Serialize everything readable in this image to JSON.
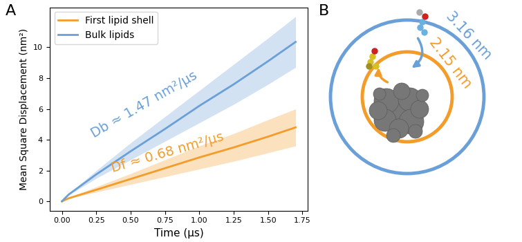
{
  "chart_data": {
    "type": "line",
    "panel_label": "A",
    "x_label": "Time (μs)",
    "y_label": "Mean Square Displacement (nm²)",
    "x": [
      0,
      0.05,
      0.25,
      0.5,
      0.75,
      1.0,
      1.25,
      1.5,
      1.7
    ],
    "series": [
      {
        "name": "First lipid shell",
        "color": "#f39c2a",
        "values": [
          0,
          0.2,
          0.75,
          1.45,
          2.15,
          2.85,
          3.5,
          4.2,
          4.8
        ],
        "upper": [
          0,
          0.25,
          0.95,
          1.8,
          2.7,
          3.6,
          4.4,
          5.3,
          6.0
        ],
        "lower": [
          0,
          0.18,
          0.6,
          1.1,
          1.6,
          2.1,
          2.6,
          3.15,
          3.6
        ],
        "annotation": "Df ≈ 0.68 nm²/μs"
      },
      {
        "name": "Bulk lipids",
        "color": "#6a9fd8",
        "values": [
          0,
          0.45,
          1.75,
          3.25,
          4.7,
          6.2,
          7.6,
          9.1,
          10.35
        ],
        "upper": [
          0,
          0.5,
          2.0,
          3.8,
          5.5,
          7.2,
          8.9,
          10.6,
          12.0
        ],
        "lower": [
          0,
          0.4,
          1.5,
          2.7,
          3.9,
          5.1,
          6.3,
          7.6,
          8.7
        ],
        "annotation": "Db ≈ 1.47 nm²/μs"
      }
    ],
    "xlim": [
      -0.09,
      1.79
    ],
    "ylim": [
      -0.6,
      12.6
    ],
    "xticks": [
      {
        "value": 0,
        "label": "0.00"
      },
      {
        "value": 0.25,
        "label": "0.25"
      },
      {
        "value": 0.5,
        "label": "0.50"
      },
      {
        "value": 0.75,
        "label": "0.75"
      },
      {
        "value": 1.0,
        "label": "1.00"
      },
      {
        "value": 1.25,
        "label": "1.25"
      },
      {
        "value": 1.5,
        "label": "1.50"
      },
      {
        "value": 1.75,
        "label": "1.75"
      }
    ],
    "yticks": [
      0,
      2,
      4,
      6,
      8,
      10
    ],
    "legend": "upper left",
    "grid": false
  },
  "diagram": {
    "panel_label": "B",
    "circles": [
      {
        "label": "3.16 nm",
        "color": "#6a9fd8"
      },
      {
        "label": "2.15 nm",
        "color": "#f39c2a"
      }
    ]
  }
}
